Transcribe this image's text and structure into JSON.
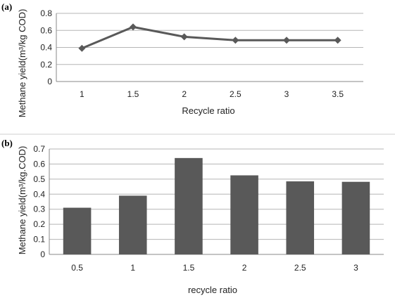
{
  "chart_data": [
    {
      "type": "line",
      "panel_label": "(a)",
      "title": "",
      "xlabel": "Recycle ratio",
      "ylabel": "Methane yield(m³/kg COD)",
      "categories": [
        "1",
        "1.5",
        "2",
        "2.5",
        "3",
        "3.5"
      ],
      "series": [
        {
          "values": [
            0.39,
            0.64,
            0.525,
            0.485,
            0.485,
            0.485
          ],
          "color": "#595959",
          "marker": "diamond"
        }
      ],
      "ylim": [
        0,
        0.8
      ],
      "yticks": [
        "0",
        "0.2",
        "0.4",
        "0.6",
        "0.8"
      ],
      "grid": true,
      "legend": "none"
    },
    {
      "type": "bar",
      "panel_label": "(b)",
      "title": "",
      "xlabel": "recycle ratio",
      "ylabel": "Methane yield(m³/kg.COD)",
      "categories": [
        "0.5",
        "1",
        "1.5",
        "2",
        "2.5",
        "3"
      ],
      "series": [
        {
          "values": [
            0.31,
            0.39,
            0.64,
            0.525,
            0.485,
            0.482
          ],
          "color": "#595959"
        }
      ],
      "ylim": [
        0,
        0.7
      ],
      "yticks": [
        "0",
        "0.1",
        "0.2",
        "0.3",
        "0.4",
        "0.5",
        "0.6",
        "0.7"
      ],
      "grid": true,
      "legend": "none"
    }
  ]
}
